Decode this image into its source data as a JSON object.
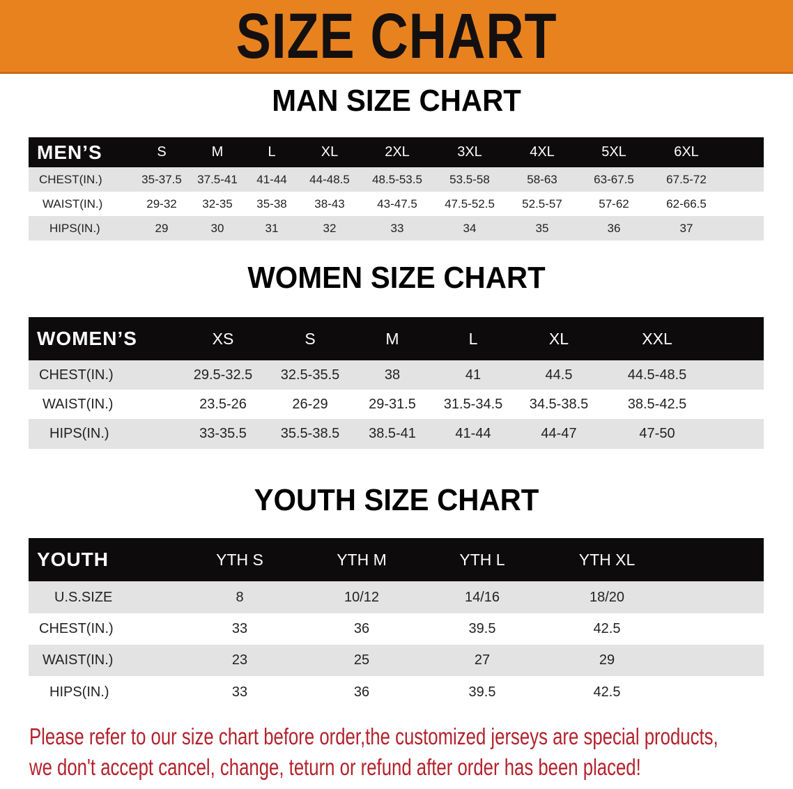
{
  "banner": {
    "title": "SIZE CHART",
    "color": "#e8821f"
  },
  "men": {
    "title": "MAN SIZE CHART",
    "header_label": "MEN’S",
    "sizes": [
      "S",
      "M",
      "L",
      "XL",
      "2XL",
      "3XL",
      "4XL",
      "5XL",
      "6XL"
    ],
    "rows": [
      {
        "label": "CHEST(IN.)",
        "values": [
          "35-37.5",
          "37.5-41",
          "41-44",
          "44-48.5",
          "48.5-53.5",
          "53.5-58",
          "58-63",
          "63-67.5",
          "67.5-72"
        ]
      },
      {
        "label": "WAIST(IN.)",
        "values": [
          "29-32",
          "32-35",
          "35-38",
          "38-43",
          "43-47.5",
          "47.5-52.5",
          "52.5-57",
          "57-62",
          "62-66.5"
        ]
      },
      {
        "label": "HIPS(IN.)",
        "values": [
          "29",
          "30",
          "31",
          "32",
          "33",
          "34",
          "35",
          "36",
          "37"
        ]
      }
    ]
  },
  "women": {
    "title": "WOMEN SIZE CHART",
    "header_label": "WOMEN’S",
    "sizes": [
      "XS",
      "S",
      "M",
      "L",
      "XL",
      "XXL"
    ],
    "rows": [
      {
        "label": "CHEST(IN.)",
        "values": [
          "29.5-32.5",
          "32.5-35.5",
          "38",
          "41",
          "44.5",
          "44.5-48.5"
        ]
      },
      {
        "label": "WAIST(IN.)",
        "values": [
          "23.5-26",
          "26-29",
          "29-31.5",
          "31.5-34.5",
          "34.5-38.5",
          "38.5-42.5"
        ]
      },
      {
        "label": "HIPS(IN.)",
        "values": [
          "33-35.5",
          "35.5-38.5",
          "38.5-41",
          "41-44",
          "44-47",
          "47-50"
        ]
      }
    ]
  },
  "youth": {
    "title": "YOUTH SIZE CHART",
    "header_label": "YOUTH",
    "sizes": [
      "YTH S",
      "YTH M",
      "YTH L",
      "YTH XL"
    ],
    "rows": [
      {
        "label": "U.S.SIZE",
        "values": [
          "8",
          "10/12",
          "14/16",
          "18/20"
        ]
      },
      {
        "label": "CHEST(IN.)",
        "values": [
          "33",
          "36",
          "39.5",
          "42.5"
        ]
      },
      {
        "label": "WAIST(IN.)",
        "values": [
          "23",
          "25",
          "27",
          "29"
        ]
      },
      {
        "label": "HIPS(IN.)",
        "values": [
          "33",
          "36",
          "39.5",
          "42.5"
        ]
      }
    ]
  },
  "notice": {
    "line1": "Please refer to our size chart before order,the customized jerseys are special products,",
    "line2": "we don't accept cancel, change, teturn or refund after order has been placed!",
    "color": "#b3222b"
  }
}
